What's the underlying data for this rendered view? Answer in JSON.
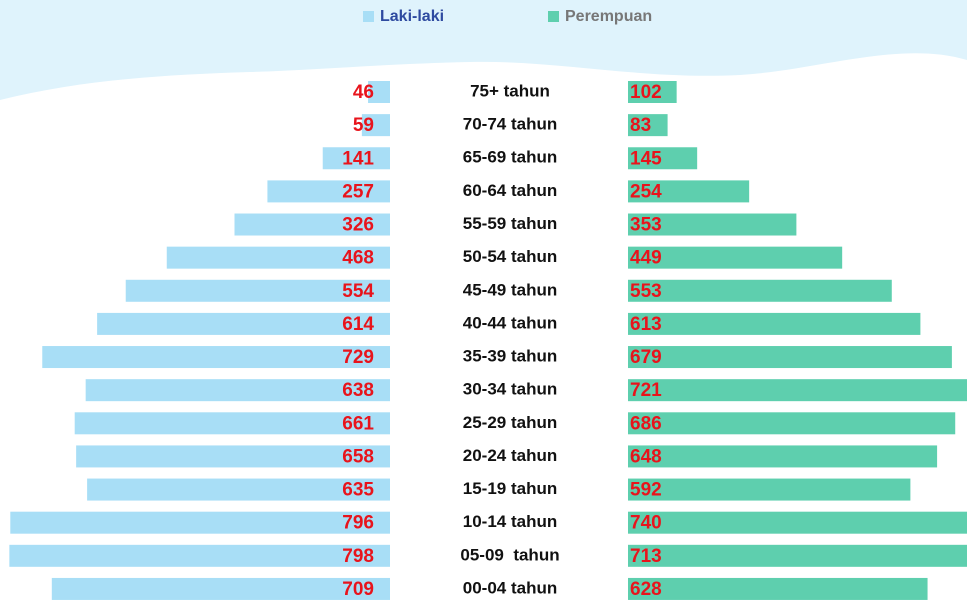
{
  "chart_data": {
    "type": "bar",
    "orientation": "horizontal",
    "categories": [
      "75+ tahun",
      "70-74 tahun",
      "65-69 tahun",
      "60-64 tahun",
      "55-59 tahun",
      "50-54 tahun",
      "45-49 tahun",
      "40-44 tahun",
      "35-39 tahun",
      "30-34 tahun",
      "25-29 tahun",
      "20-24 tahun",
      "15-19 tahun",
      "10-14 tahun",
      "05-09  tahun",
      "00-04 tahun"
    ],
    "series": [
      {
        "name": "Laki-laki",
        "color": "#a8def6",
        "values": [
          46,
          59,
          141,
          257,
          326,
          468,
          554,
          614,
          729,
          638,
          661,
          658,
          635,
          796,
          798,
          709
        ]
      },
      {
        "name": "Perempuan",
        "color": "#5ecfae",
        "values": [
          102,
          83,
          145,
          254,
          353,
          449,
          553,
          613,
          679,
          721,
          686,
          648,
          592,
          740,
          713,
          628
        ]
      }
    ]
  }
}
